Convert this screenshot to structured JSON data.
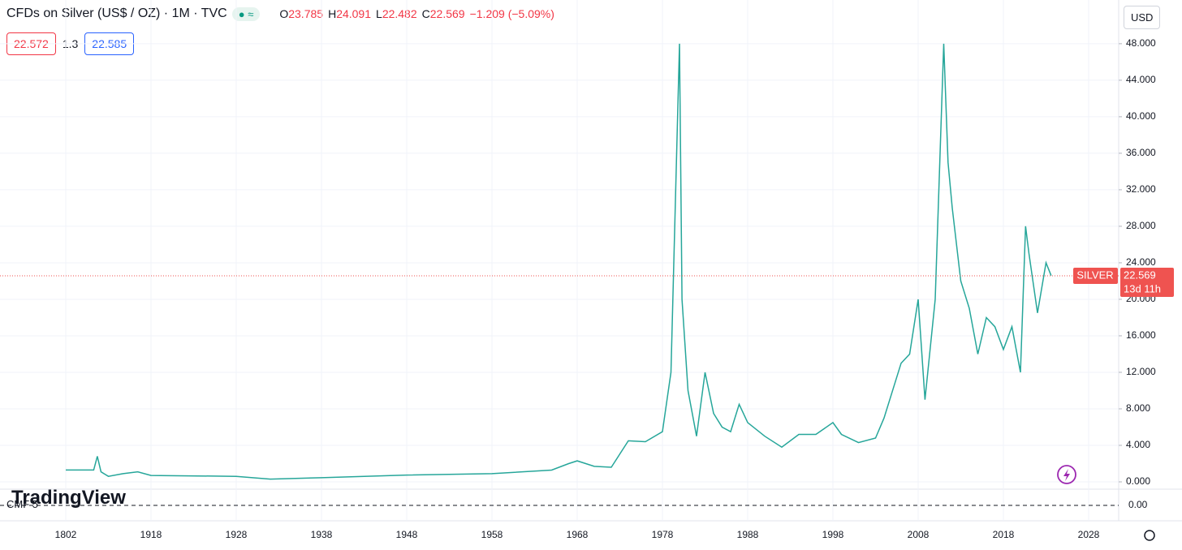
{
  "ui": {
    "title": "CFDs on Silver (US$ / OZ) · 1M · TVC",
    "ohlc": [
      {
        "k": "O",
        "v": "23.785"
      },
      {
        "k": "H",
        "v": "24.091"
      },
      {
        "k": "L",
        "v": "22.482"
      },
      {
        "k": "C",
        "v": "22.569"
      }
    ],
    "change": "−1.209 (−5.09%)",
    "bid": "22.572",
    "spread": "1.3",
    "ask": "22.585",
    "currency": "USD",
    "countdown": "13d 11h",
    "indicator": "CMF 5",
    "indicator_tick": "0.00",
    "logo": "TradingView"
  },
  "chart_data": {
    "type": "line",
    "x": [
      1802,
      1840,
      1845,
      1850,
      1860,
      1880,
      1900,
      1918,
      1928,
      1932,
      1938,
      1948,
      1958,
      1965,
      1967,
      1968,
      1970,
      1972,
      1974,
      1976,
      1978,
      1979,
      1980,
      1980.3,
      1981,
      1982,
      1983,
      1984,
      1985,
      1986,
      1987,
      1988,
      1990,
      1992,
      1994,
      1996,
      1998,
      1999,
      2001,
      2003,
      2004,
      2006,
      2007,
      2008,
      2008.8,
      2010,
      2011,
      2011.5,
      2012,
      2013,
      2014,
      2015,
      2016,
      2017,
      2018,
      2019,
      2020,
      2020.6,
      2021,
      2022,
      2023,
      2023.6
    ],
    "series": [
      {
        "name": "SILVER",
        "color": "#26a69a",
        "values": [
          1.3,
          1.3,
          2.8,
          1.1,
          0.6,
          0.9,
          1.1,
          0.7,
          0.6,
          0.3,
          0.45,
          0.75,
          0.9,
          1.29,
          2.0,
          2.3,
          1.7,
          1.6,
          4.5,
          4.4,
          5.5,
          12,
          48,
          20,
          10,
          5.0,
          12,
          7.5,
          6,
          5.5,
          8.5,
          6.5,
          5,
          3.8,
          5.2,
          5.2,
          6.5,
          5.2,
          4.3,
          4.8,
          7,
          13,
          14,
          20,
          9,
          20,
          48,
          35,
          30,
          22,
          19,
          14,
          18,
          17,
          14.5,
          17,
          12,
          28,
          25,
          18.5,
          24,
          22.6
        ]
      }
    ],
    "xlim": [
      1712.5,
      2030.1
    ],
    "xticks": [
      1802,
      1918,
      1928,
      1938,
      1948,
      1958,
      1968,
      1978,
      1988,
      1998,
      2008,
      2018,
      2028
    ],
    "ylim": [
      -0.8,
      51.9
    ],
    "yticks": [
      {
        "value": 0,
        "label": "0.000"
      },
      {
        "value": 4,
        "label": "4.000"
      },
      {
        "value": 8,
        "label": "8.000"
      },
      {
        "value": 12,
        "label": "12.000"
      },
      {
        "value": 16,
        "label": "16.000"
      },
      {
        "value": 20,
        "label": "20.000"
      },
      {
        "value": 24,
        "label": "24.000"
      },
      {
        "value": 28,
        "label": "28.000"
      },
      {
        "value": 32,
        "label": "32.000"
      },
      {
        "value": 36,
        "label": "36.000"
      },
      {
        "value": 40,
        "label": "40.000"
      },
      {
        "value": 44,
        "label": "44.000"
      },
      {
        "value": 48,
        "label": "48.000"
      }
    ],
    "grid": true,
    "last_value": 22.569,
    "last_color": "#ef5350"
  }
}
